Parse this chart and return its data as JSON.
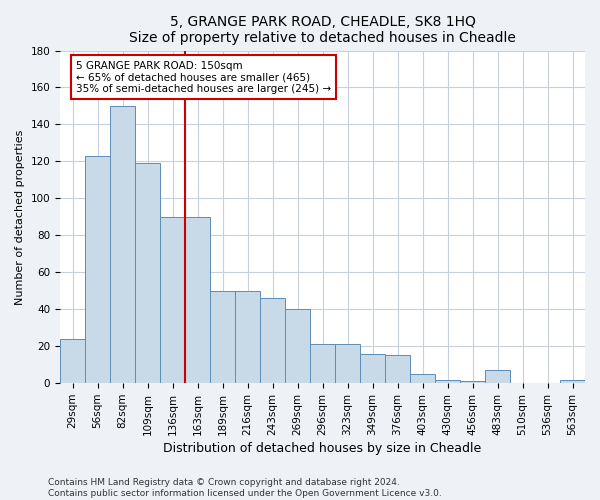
{
  "title1": "5, GRANGE PARK ROAD, CHEADLE, SK8 1HQ",
  "title2": "Size of property relative to detached houses in Cheadle",
  "xlabel": "Distribution of detached houses by size in Cheadle",
  "ylabel": "Number of detached properties",
  "categories": [
    "29sqm",
    "56sqm",
    "82sqm",
    "109sqm",
    "136sqm",
    "163sqm",
    "189sqm",
    "216sqm",
    "243sqm",
    "269sqm",
    "296sqm",
    "323sqm",
    "349sqm",
    "376sqm",
    "403sqm",
    "430sqm",
    "456sqm",
    "483sqm",
    "510sqm",
    "536sqm",
    "563sqm"
  ],
  "values": [
    24,
    123,
    150,
    119,
    90,
    90,
    50,
    50,
    46,
    40,
    21,
    21,
    16,
    15,
    5,
    2,
    1,
    7,
    0,
    0,
    2
  ],
  "bar_color": "#c8d9e8",
  "bar_edge_color": "#5b8db8",
  "vline_color": "#cc0000",
  "annotation_text": "5 GRANGE PARK ROAD: 150sqm\n← 65% of detached houses are smaller (465)\n35% of semi-detached houses are larger (245) →",
  "annotation_box_color": "#ffffff",
  "annotation_box_edge": "#cc0000",
  "ylim": [
    0,
    180
  ],
  "yticks": [
    0,
    20,
    40,
    60,
    80,
    100,
    120,
    140,
    160,
    180
  ],
  "footer1": "Contains HM Land Registry data © Crown copyright and database right 2024.",
  "footer2": "Contains public sector information licensed under the Open Government Licence v3.0.",
  "bg_color": "#eef2f7",
  "plot_bg_color": "#ffffff",
  "grid_color": "#c8d0dc",
  "title_fontsize": 10,
  "ylabel_fontsize": 8,
  "xlabel_fontsize": 9,
  "tick_fontsize": 7.5,
  "annot_fontsize": 7.5,
  "footer_fontsize": 6.5
}
